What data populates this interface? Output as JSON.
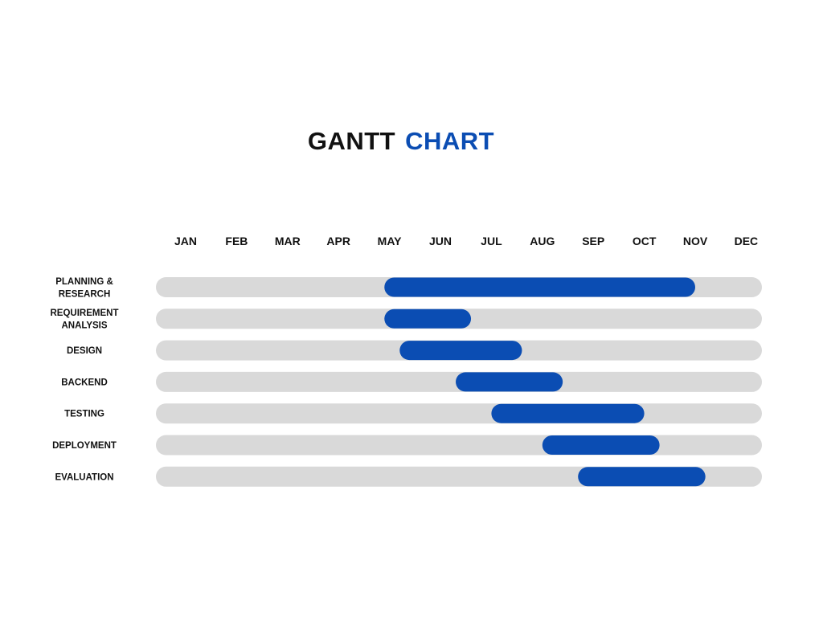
{
  "title": {
    "part1": "GANTT",
    "part2": "CHART"
  },
  "colors": {
    "accent": "#0b4db3",
    "track": "#d9d9d9",
    "text": "#111111",
    "background": "#ffffff"
  },
  "chart_data": {
    "type": "gantt",
    "title": "GANTT CHART",
    "months": [
      "JAN",
      "FEB",
      "MAR",
      "APR",
      "MAY",
      "JUN",
      "JUL",
      "AUG",
      "SEP",
      "OCT",
      "NOV",
      "DEC"
    ],
    "x_range": [
      0,
      12
    ],
    "x_unit": "months from start of JAN",
    "grid": false,
    "tasks": [
      {
        "name": "PLANNING & RESEARCH",
        "label_lines": [
          "PLANNING &",
          "RESEARCH"
        ],
        "start": 4.4,
        "end": 10.5
      },
      {
        "name": "REQUIREMENT ANALYSIS",
        "label_lines": [
          "REQUIREMENT",
          "ANALYSIS"
        ],
        "start": 4.4,
        "end": 6.1
      },
      {
        "name": "DESIGN",
        "label_lines": [
          "DESIGN"
        ],
        "start": 4.7,
        "end": 7.1
      },
      {
        "name": "BACKEND",
        "label_lines": [
          "BACKEND"
        ],
        "start": 5.8,
        "end": 7.9
      },
      {
        "name": "TESTING",
        "label_lines": [
          "TESTING"
        ],
        "start": 6.5,
        "end": 9.5
      },
      {
        "name": "DEPLOYMENT",
        "label_lines": [
          "DEPLOYMENT"
        ],
        "start": 7.5,
        "end": 9.8
      },
      {
        "name": "EVALUATION",
        "label_lines": [
          "EVALUATION"
        ],
        "start": 8.2,
        "end": 10.7
      }
    ]
  }
}
